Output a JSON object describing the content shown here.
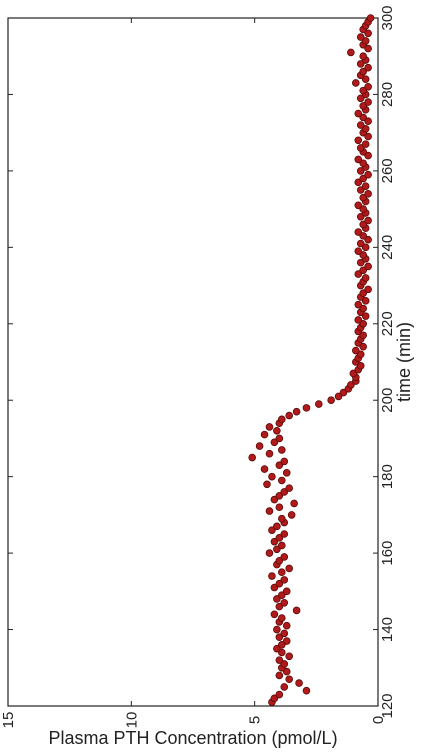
{
  "chart_data": {
    "type": "scatter",
    "orientation": "rotated-90-clockwise",
    "xlabel": "time (min)",
    "ylabel": "Plasma PTH Concentration (pmol/L)",
    "xlim": [
      120,
      300
    ],
    "ylim": [
      0,
      15
    ],
    "x_ticks": [
      "120",
      "140",
      "160",
      "180",
      "200",
      "220",
      "240",
      "260",
      "280",
      "300"
    ],
    "y_ticks": [
      "0",
      "5",
      "10",
      "15"
    ],
    "grid": false,
    "legend": "none",
    "marker_color": "#b11a1a",
    "marker_edge_color": "#5a0a0a",
    "series": [
      {
        "x": [
          121,
          122,
          123,
          124,
          125,
          126,
          127,
          128,
          129,
          130,
          131,
          132,
          133,
          134,
          135,
          136,
          137,
          138,
          139,
          140,
          141,
          142,
          143,
          144,
          145,
          146,
          147,
          148,
          149,
          150,
          151,
          152,
          153,
          154,
          155,
          156,
          157,
          158,
          159,
          160,
          161,
          162,
          163,
          164,
          165,
          166,
          167,
          168,
          169,
          170,
          171,
          172,
          173,
          174,
          175,
          176,
          177,
          178,
          179,
          180,
          181,
          182,
          183,
          184,
          185,
          186,
          187,
          188,
          189,
          190,
          191,
          192,
          193,
          194,
          195,
          196,
          197,
          198,
          199,
          200,
          201,
          202,
          203,
          204,
          205,
          206,
          207,
          208,
          209,
          210,
          211,
          212,
          213,
          214,
          215,
          216,
          217,
          218,
          219,
          220,
          221,
          222,
          223,
          224,
          225,
          226,
          227,
          228,
          229,
          230,
          231,
          232,
          233,
          234,
          235,
          236,
          237,
          238,
          239,
          240,
          241,
          242,
          243,
          244,
          245,
          246,
          247,
          248,
          249,
          250,
          251,
          252,
          253,
          254,
          255,
          256,
          257,
          258,
          259,
          260,
          261,
          262,
          263,
          264,
          265,
          266,
          267,
          268,
          269,
          270,
          271,
          272,
          273,
          274,
          275,
          276,
          277,
          278,
          279,
          280,
          281,
          282,
          283,
          284,
          285,
          286,
          287,
          288,
          289,
          290,
          291,
          292,
          293,
          294,
          295,
          296,
          297,
          298,
          299,
          300
        ],
        "y": [
          4.3,
          4.2,
          4.0,
          2.9,
          3.8,
          3.2,
          3.6,
          4.0,
          3.7,
          3.9,
          3.8,
          4.0,
          3.6,
          3.9,
          4.1,
          3.9,
          3.7,
          4.0,
          3.8,
          4.1,
          3.7,
          4.0,
          3.9,
          4.2,
          3.3,
          4.0,
          3.8,
          4.1,
          3.9,
          3.7,
          4.2,
          4.0,
          3.8,
          4.3,
          3.9,
          3.6,
          4.1,
          4.0,
          3.8,
          4.4,
          4.1,
          3.9,
          4.2,
          4.0,
          3.8,
          4.3,
          4.1,
          3.8,
          3.9,
          3.5,
          4.4,
          4.0,
          3.4,
          4.2,
          4.0,
          3.8,
          3.6,
          4.5,
          3.9,
          4.3,
          3.7,
          4.6,
          4.0,
          3.8,
          5.1,
          4.4,
          3.9,
          4.8,
          4.2,
          4.0,
          4.6,
          4.1,
          4.4,
          4.0,
          3.9,
          3.6,
          3.3,
          2.9,
          2.4,
          1.9,
          1.6,
          1.4,
          1.2,
          1.1,
          0.9,
          0.9,
          1.0,
          0.8,
          0.7,
          0.9,
          0.8,
          0.7,
          0.9,
          0.6,
          0.8,
          0.7,
          0.6,
          0.8,
          0.7,
          0.6,
          0.8,
          0.5,
          0.7,
          0.6,
          0.8,
          0.5,
          0.7,
          0.6,
          0.4,
          0.7,
          0.6,
          0.5,
          0.8,
          0.6,
          0.4,
          0.7,
          0.5,
          0.6,
          0.8,
          0.5,
          0.7,
          0.4,
          0.6,
          0.8,
          0.5,
          0.6,
          0.4,
          0.7,
          0.5,
          0.6,
          0.8,
          0.5,
          0.6,
          0.4,
          0.7,
          0.5,
          0.8,
          0.6,
          0.4,
          0.7,
          0.5,
          0.6,
          0.8,
          0.4,
          0.6,
          0.7,
          0.5,
          0.8,
          0.4,
          0.6,
          0.5,
          0.7,
          0.4,
          0.6,
          0.8,
          0.5,
          0.6,
          0.4,
          0.7,
          0.5,
          0.6,
          0.4,
          0.9,
          0.5,
          0.7,
          0.6,
          0.4,
          0.7,
          0.5,
          0.6,
          1.1,
          0.4,
          0.6,
          0.5,
          0.7,
          0.4,
          0.6,
          0.5,
          0.4,
          0.3
        ]
      }
    ]
  }
}
